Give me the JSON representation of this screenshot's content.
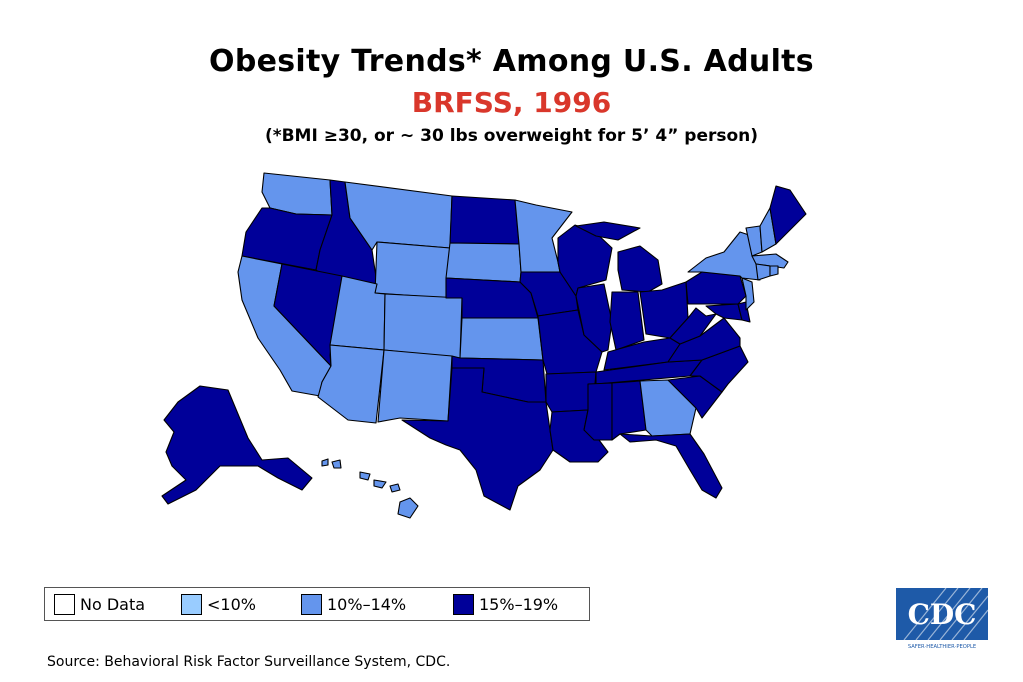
{
  "title": "Obesity Trends* Among U.S. Adults",
  "subtitle": "BRFSS, 1996",
  "note": "(*BMI ≥30, or ~ 30 lbs overweight for 5’ 4” person)",
  "colors": {
    "no_data": "#ffffff",
    "lt10": "#99ccff",
    "c10_14": "#6495ed",
    "c15_19": "#000099",
    "subtitle": "#d9372b"
  },
  "legend": [
    {
      "label": "No Data",
      "key": "no_data"
    },
    {
      "label": "<10%",
      "key": "lt10"
    },
    {
      "label": "10%–14%",
      "key": "c10_14"
    },
    {
      "label": "15%–19%",
      "key": "c15_19"
    }
  ],
  "states": {
    "WA": "10-14",
    "OR": "15-19",
    "CA": "10-14",
    "ID": "15-19",
    "NV": "15-19",
    "MT": "10-14",
    "WY": "10-14",
    "UT": "10-14",
    "AZ": "10-14",
    "CO": "10-14",
    "NM": "10-14",
    "ND": "15-19",
    "SD": "10-14",
    "NE": "15-19",
    "KS": "10-14",
    "OK": "15-19",
    "TX": "15-19",
    "MN": "10-14",
    "IA": "15-19",
    "MO": "15-19",
    "AR": "15-19",
    "LA": "15-19",
    "WI": "15-19",
    "IL": "15-19",
    "MI": "15-19",
    "IN": "15-19",
    "OH": "15-19",
    "KY": "15-19",
    "TN": "15-19",
    "MS": "15-19",
    "AL": "15-19",
    "GA": "10-14",
    "FL": "15-19",
    "SC": "15-19",
    "NC": "15-19",
    "VA": "15-19",
    "WV": "15-19",
    "PA": "15-19",
    "NY": "10-14",
    "VT": "10-14",
    "NH": "10-14",
    "ME": "15-19",
    "MA": "10-14",
    "RI": "10-14",
    "CT": "10-14",
    "NJ": "10-14",
    "DE": "15-19",
    "MD": "15-19",
    "AK": "15-19",
    "HI": "10-14"
  },
  "source": "Source: Behavioral Risk Factor Surveillance System, CDC.",
  "logo": {
    "text": "CDC",
    "tagline": "SAFER·HEALTHIER·PEOPLE"
  }
}
